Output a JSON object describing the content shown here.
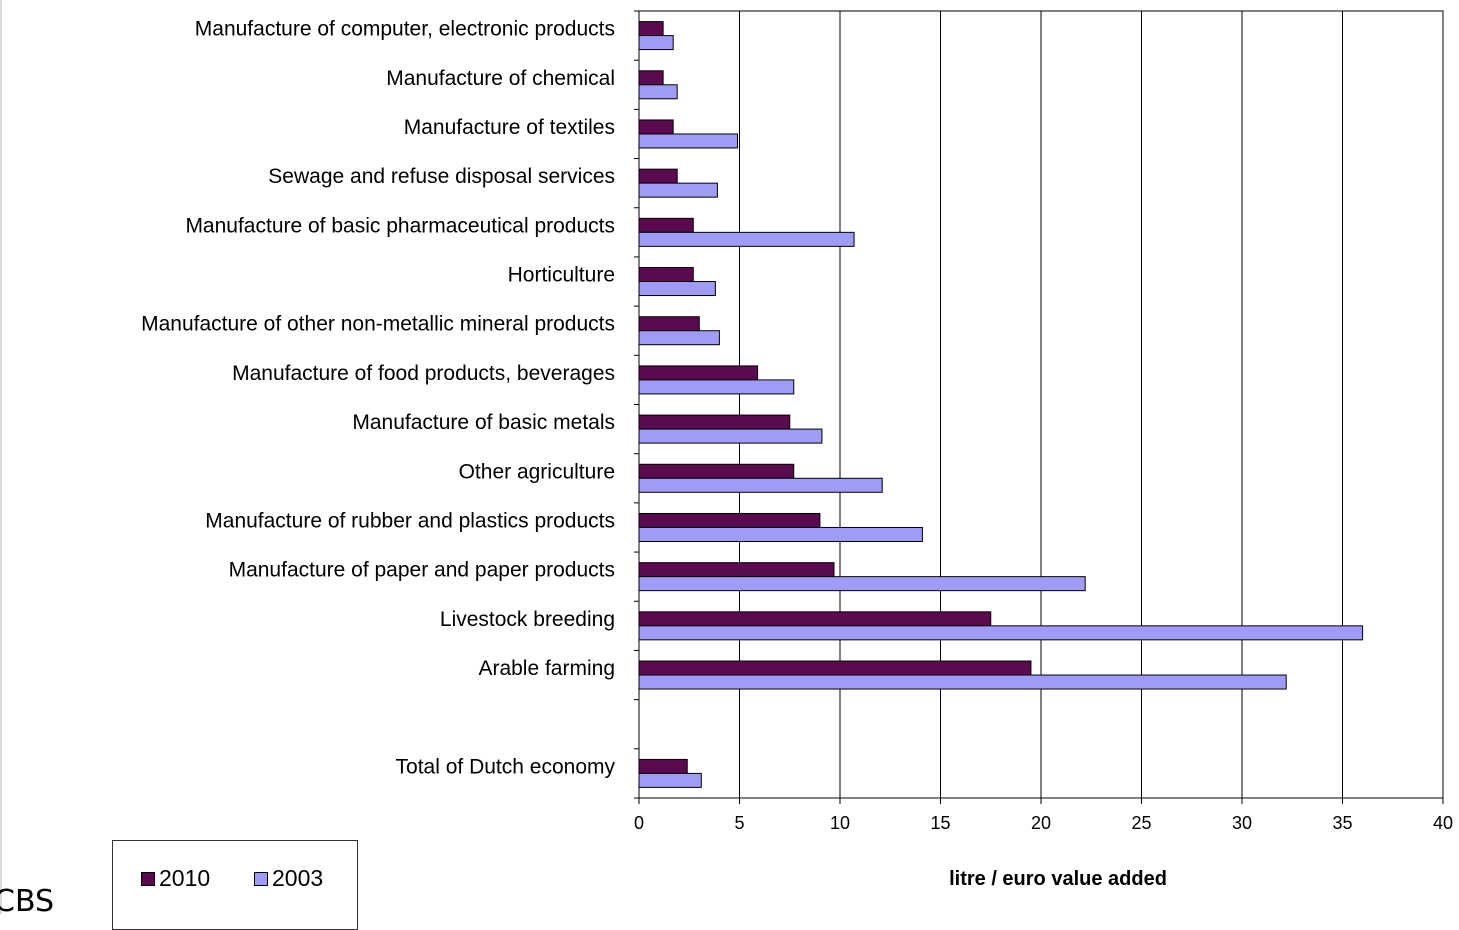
{
  "chart_data": {
    "type": "bar",
    "orientation": "horizontal",
    "xlabel": "litre / euro value added",
    "xlim": [
      0,
      40
    ],
    "xticks": [
      0,
      5,
      10,
      15,
      20,
      25,
      30,
      35,
      40
    ],
    "grid": true,
    "legend_position": "bottom-left",
    "categories": [
      "Manufacture of computer, electronic products",
      "Manufacture of chemical",
      "Manufacture of textiles",
      "Sewage and refuse disposal services",
      "Manufacture of basic pharmaceutical products",
      "Horticulture",
      "Manufacture of other non-metallic mineral products",
      "Manufacture of food products, beverages",
      "Manufacture of basic metals",
      "Other agriculture",
      "Manufacture of rubber and plastics products",
      "Manufacture of paper and paper products",
      "Livestock breeding",
      "Arable farming",
      "",
      "Total of Dutch economy"
    ],
    "series": [
      {
        "name": "2010",
        "color": "#5c0a50",
        "values": [
          1.2,
          1.2,
          1.7,
          1.9,
          2.7,
          2.7,
          3.0,
          5.9,
          7.5,
          7.7,
          9.0,
          9.7,
          17.5,
          19.5,
          null,
          2.4
        ]
      },
      {
        "name": "2003",
        "color": "#9e9cf5",
        "values": [
          1.7,
          1.9,
          4.9,
          3.9,
          10.7,
          3.8,
          4.0,
          7.7,
          9.1,
          12.1,
          14.1,
          22.2,
          36.0,
          32.2,
          null,
          3.1
        ]
      }
    ]
  },
  "corner_text": "CBS"
}
